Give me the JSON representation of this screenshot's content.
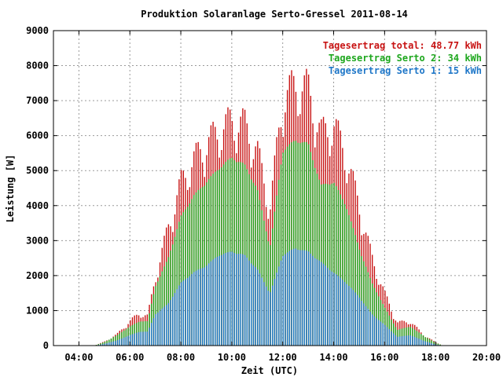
{
  "chart_data": {
    "type": "bar",
    "stacked": true,
    "title": "Produktion Solaranlage Serto-Gressel 2011-08-14",
    "xlabel": "Zeit (UTC)",
    "ylabel": "Leistung [W]",
    "ylim": [
      0,
      9000
    ],
    "yticks": [
      "0",
      "1000",
      "2000",
      "3000",
      "4000",
      "5000",
      "6000",
      "7000",
      "8000",
      "9000"
    ],
    "xlim_hours": [
      3.0,
      20.0
    ],
    "xticks": [
      "04:00",
      "06:00",
      "08:00",
      "10:00",
      "12:00",
      "14:00",
      "16:00",
      "18:00",
      "20:00"
    ],
    "grid": true,
    "legend_position": "top-right",
    "bar_interval_minutes": 5,
    "series": [
      {
        "name": "Serto 1",
        "color": "#1f77c8"
      },
      {
        "name": "Serto 2",
        "color": "#1ea71e"
      },
      {
        "name": "total",
        "color": "#c81414"
      }
    ],
    "legend": [
      {
        "text": "Tagesertrag total: 48.77 kWh",
        "color": "#c81414"
      },
      {
        "text": "Tagesertrag Serto 2: 34 kWh",
        "color": "#1ea71e"
      },
      {
        "text": "Tagesertrag Serto 1: 15 kWh",
        "color": "#1f77c8"
      }
    ],
    "profile_points": [
      {
        "t": 4.6,
        "s1": 0,
        "s2": 0,
        "total": 0
      },
      {
        "t": 5.0,
        "s1": 50,
        "s2": 100,
        "total": 120
      },
      {
        "t": 5.5,
        "s1": 150,
        "s2": 300,
        "total": 350
      },
      {
        "t": 6.0,
        "s1": 300,
        "s2": 550,
        "total": 750
      },
      {
        "t": 6.4,
        "s1": 400,
        "s2": 700,
        "total": 1000
      },
      {
        "t": 6.7,
        "s1": 400,
        "s2": 700,
        "total": 900
      },
      {
        "t": 7.0,
        "s1": 900,
        "s2": 1700,
        "total": 2100
      },
      {
        "t": 7.5,
        "s1": 1200,
        "s2": 2500,
        "total": 3600
      },
      {
        "t": 8.0,
        "s1": 1800,
        "s2": 3700,
        "total": 5000
      },
      {
        "t": 8.5,
        "s1": 2100,
        "s2": 4300,
        "total": 5700
      },
      {
        "t": 9.0,
        "s1": 2300,
        "s2": 4700,
        "total": 6200
      },
      {
        "t": 9.5,
        "s1": 2600,
        "s2": 5100,
        "total": 6600
      },
      {
        "t": 10.0,
        "s1": 2700,
        "s2": 5400,
        "total": 6900
      },
      {
        "t": 10.5,
        "s1": 2600,
        "s2": 5200,
        "total": 6800
      },
      {
        "t": 11.0,
        "s1": 2200,
        "s2": 4500,
        "total": 6000
      },
      {
        "t": 11.5,
        "s1": 1500,
        "s2": 2800,
        "total": 4200
      },
      {
        "t": 12.0,
        "s1": 2600,
        "s2": 5600,
        "total": 7600
      },
      {
        "t": 12.5,
        "s1": 2800,
        "s2": 5900,
        "total": 8000
      },
      {
        "t": 13.0,
        "s1": 2700,
        "s2": 5800,
        "total": 7900
      },
      {
        "t": 13.5,
        "s1": 2400,
        "s2": 4600,
        "total": 6500
      },
      {
        "t": 14.0,
        "s1": 2100,
        "s2": 4700,
        "total": 6800
      },
      {
        "t": 14.5,
        "s1": 1800,
        "s2": 4000,
        "total": 5800
      },
      {
        "t": 15.0,
        "s1": 1400,
        "s2": 2800,
        "total": 4300
      },
      {
        "t": 15.5,
        "s1": 900,
        "s2": 1800,
        "total": 2700
      },
      {
        "t": 16.0,
        "s1": 600,
        "s2": 1100,
        "total": 1600
      },
      {
        "t": 16.5,
        "s1": 250,
        "s2": 450,
        "total": 700
      },
      {
        "t": 17.0,
        "s1": 300,
        "s2": 550,
        "total": 750
      },
      {
        "t": 17.5,
        "s1": 150,
        "s2": 300,
        "total": 350
      },
      {
        "t": 18.0,
        "s1": 30,
        "s2": 80,
        "total": 100
      },
      {
        "t": 18.3,
        "s1": 0,
        "s2": 0,
        "total": 0
      }
    ]
  }
}
